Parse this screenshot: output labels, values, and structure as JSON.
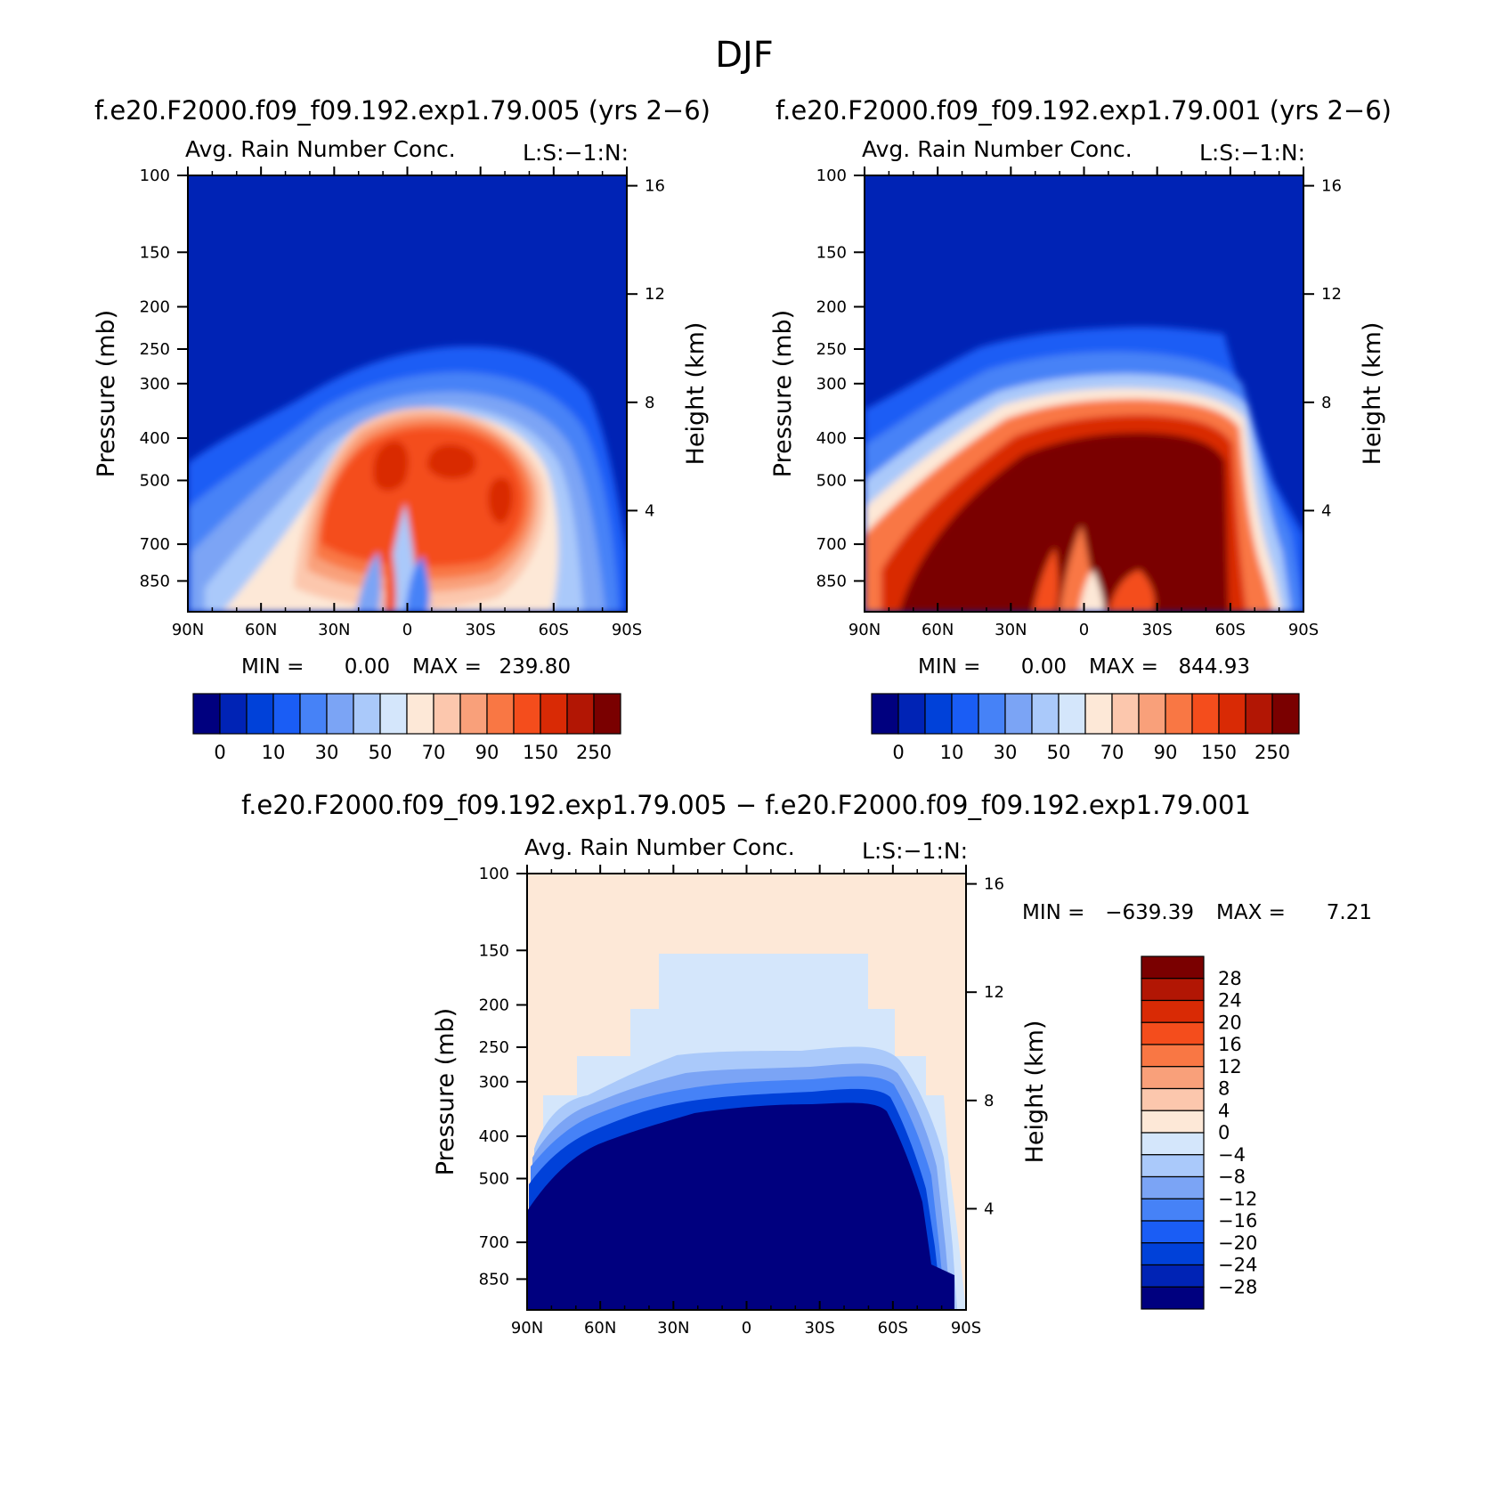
{
  "main_title": "DJF",
  "colors": {
    "palette": [
      "#00007f",
      "#0023b5",
      "#0041d9",
      "#1a5df5",
      "#4682f7",
      "#7ba4f5",
      "#aac9fa",
      "#d4e6fb",
      "#fde8d7",
      "#fcc7ad",
      "#f9a07a",
      "#f97744",
      "#f44d1c",
      "#d92a05",
      "#b21604",
      "#7a0000"
    ],
    "diff_palette": [
      "#00007f",
      "#0023b5",
      "#0041d9",
      "#1a5df5",
      "#4682f7",
      "#7ba4f5",
      "#aac9fa",
      "#d4e6fb",
      "#fde8d7",
      "#fcc7ad",
      "#f9a07a",
      "#f97744",
      "#f44d1c",
      "#d92a05",
      "#b21604",
      "#7a0000"
    ]
  },
  "chart_data": [
    {
      "type": "heatmap",
      "id": "panel-left",
      "title": "f.e20.F2000.f09_f09.192.exp1.79.005 (yrs 2−6)",
      "variable": "Avg. Rain Number Conc.",
      "annotation": "L:S:−1:N:",
      "xlabel": "",
      "ylabel": "Pressure (mb)",
      "ylabel_right": "Height (km)",
      "x_ticks": [
        "90N",
        "60N",
        "30N",
        "0",
        "30S",
        "60S",
        "90S"
      ],
      "y_ticks": [
        100,
        150,
        200,
        250,
        300,
        400,
        500,
        700,
        850
      ],
      "y_right_ticks": [
        16,
        12,
        8,
        4
      ],
      "stats": {
        "min_label": "MIN =",
        "min_value": "0.00",
        "max_label": "MAX =",
        "max_value": "239.80"
      },
      "colorbar_labels": [
        "0",
        "10",
        "30",
        "50",
        "70",
        "90",
        "150",
        "250"
      ],
      "field": {
        "background_level": 1,
        "top_boundary_pressure": [
          420,
          390,
          360,
          340,
          310,
          290,
          275,
          265,
          258,
          255,
          258,
          262,
          270,
          290,
          330,
          420,
          550
        ],
        "core_levels": [
          [
            400,
            8
          ],
          [
            350,
            10
          ],
          [
            320,
            12
          ],
          [
            310,
            14
          ],
          [
            305,
            15
          ]
        ]
      }
    },
    {
      "type": "heatmap",
      "id": "panel-right",
      "title": "f.e20.F2000.f09_f09.192.exp1.79.001 (yrs 2−6)",
      "variable": "Avg. Rain Number Conc.",
      "annotation": "L:S:−1:N:",
      "xlabel": "",
      "ylabel": "Pressure (mb)",
      "ylabel_right": "Height (km)",
      "x_ticks": [
        "90N",
        "60N",
        "30N",
        "0",
        "30S",
        "60S",
        "90S"
      ],
      "y_ticks": [
        100,
        150,
        200,
        250,
        300,
        400,
        500,
        700,
        850
      ],
      "y_right_ticks": [
        16,
        12,
        8,
        4
      ],
      "stats": {
        "min_label": "MIN =",
        "min_value": "0.00",
        "max_label": "MAX =",
        "max_value": "844.93"
      },
      "colorbar_labels": [
        "0",
        "10",
        "30",
        "50",
        "70",
        "90",
        "150",
        "250"
      ]
    },
    {
      "type": "heatmap",
      "id": "panel-diff",
      "title": "f.e20.F2000.f09_f09.192.exp1.79.005 − f.e20.F2000.f09_f09.192.exp1.79.001",
      "variable": "Avg. Rain Number Conc.",
      "annotation": "L:S:−1:N:",
      "xlabel": "",
      "ylabel": "Pressure (mb)",
      "ylabel_right": "Height (km)",
      "x_ticks": [
        "90N",
        "60N",
        "30N",
        "0",
        "30S",
        "60S",
        "90S"
      ],
      "y_ticks": [
        100,
        150,
        200,
        250,
        300,
        400,
        500,
        700,
        850
      ],
      "y_right_ticks": [
        16,
        12,
        8,
        4
      ],
      "stats": {
        "min_label": "MIN =",
        "min_value": "−639.39",
        "max_label": "MAX =",
        "max_value": "7.21"
      },
      "colorbar_labels": [
        "28",
        "24",
        "20",
        "16",
        "12",
        "8",
        "4",
        "0",
        "−4",
        "−8",
        "−12",
        "−16",
        "−20",
        "−24",
        "−28"
      ]
    }
  ]
}
